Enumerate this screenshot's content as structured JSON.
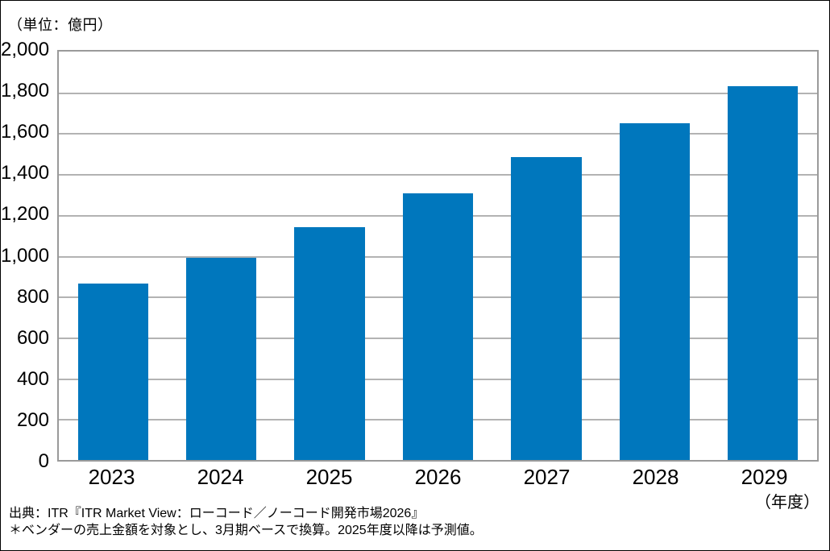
{
  "labels": {
    "unit": "（単位：億円）",
    "x_axis_unit": "（年度）"
  },
  "footer": {
    "source": "出典：ITR『ITR Market View：ローコード／ノーコード開発市場2026』",
    "note": "＊ベンダーの売上金額を対象とし、3月期ベースで換算。2025年度以降は予測値。"
  },
  "colors": {
    "bar": "#0077BD",
    "grid": "#b3b3b3",
    "plot_border": "#9a9a9a"
  },
  "chart_data": {
    "type": "bar",
    "title": "",
    "unit_label": "（単位：億円）",
    "xlabel": "（年度）",
    "ylabel": "",
    "categories": [
      "2023",
      "2024",
      "2025",
      "2026",
      "2027",
      "2028",
      "2029"
    ],
    "values": [
      865,
      990,
      1140,
      1305,
      1485,
      1650,
      1830
    ],
    "ylim": [
      0,
      2000
    ],
    "ytick_interval": 200,
    "yticks": [
      "0",
      "200",
      "400",
      "600",
      "800",
      "1,000",
      "1,200",
      "1,400",
      "1,600",
      "1,800",
      "2,000"
    ],
    "grid": true,
    "legend": false,
    "bar_color": "#0077BD"
  }
}
